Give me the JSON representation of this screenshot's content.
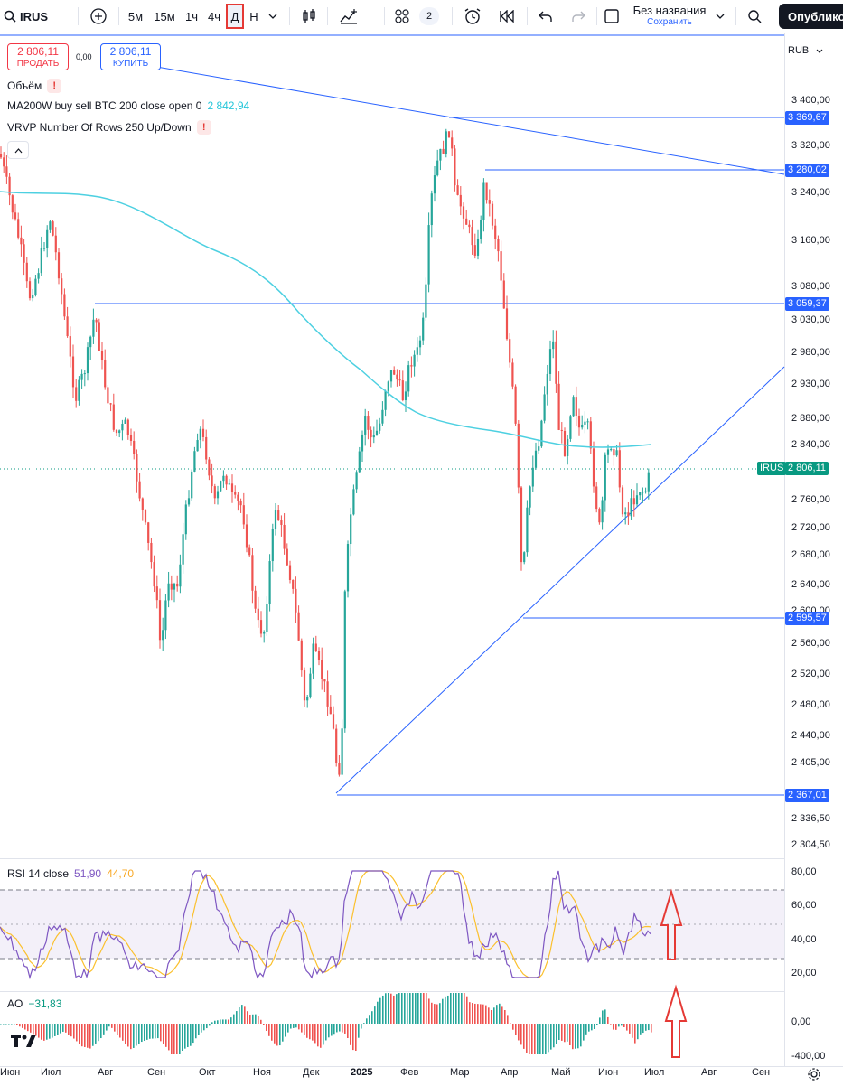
{
  "toolbar": {
    "symbol": "IRUS",
    "intervals": [
      "5м",
      "15м",
      "1ч",
      "4ч",
      "Д",
      "Н"
    ],
    "active_interval": "Д",
    "indicator_count": "2",
    "layout_name": "Без названия",
    "layout_status": "Сохранить",
    "publish_label": "Опублико"
  },
  "trade": {
    "sell_price": "2 806,11",
    "sell_label": "ПРОДАТЬ",
    "spread": "0,00",
    "buy_price": "2 806,11",
    "buy_label": "КУПИТЬ"
  },
  "currency": "RUB",
  "legends": {
    "volume": "Объём",
    "ma": "MA200W buy sell BTC 200 close open 0",
    "ma_value": "2 842,94",
    "vrvp": "VRVP Number Of Rows 250 Up/Down"
  },
  "price_axis": [
    "3 400,00",
    "3 320,00",
    "3 240,00",
    "3 160,00",
    "3 080,00",
    "3 030,00",
    "2 980,00",
    "2 930,00",
    "2 880,00",
    "2 840,00",
    "2 760,00",
    "2 720,00",
    "2 680,00",
    "2 640,00",
    "2 600,00",
    "2 560,00",
    "2 520,00",
    "2 480,00",
    "2 440,00",
    "2 405,00",
    "2 336,50",
    "2 304,50"
  ],
  "price_labels": {
    "level_1": "3 369,67",
    "level_2": "3 280,02",
    "level_3": "3 059,37",
    "level_4": "2 595,57",
    "level_5": "2 367,01",
    "current_symbol": "IRUS",
    "current_price": "2 806,11"
  },
  "rsi": {
    "label": "RSI 14 close",
    "value": "51,90",
    "ma_value": "44,70",
    "axis": [
      "80,00",
      "60,00",
      "40,00",
      "20,00"
    ]
  },
  "ao": {
    "label": "AO",
    "value": "−31,83",
    "axis": [
      "0,00",
      "-400,00"
    ]
  },
  "time_axis": [
    "Июн",
    "Июл",
    "Авг",
    "Сен",
    "Окт",
    "Ноя",
    "Дек",
    "2025",
    "Фев",
    "Мар",
    "Апр",
    "Май",
    "Июн",
    "Июл",
    "Авг",
    "Сен"
  ],
  "colors": {
    "up": "#26a69a",
    "down": "#ef5350",
    "ma": "#4dd0e1",
    "trendline": "#2962ff",
    "rsi": "#7e57c2",
    "rsi_ma": "#fbc02d"
  }
}
